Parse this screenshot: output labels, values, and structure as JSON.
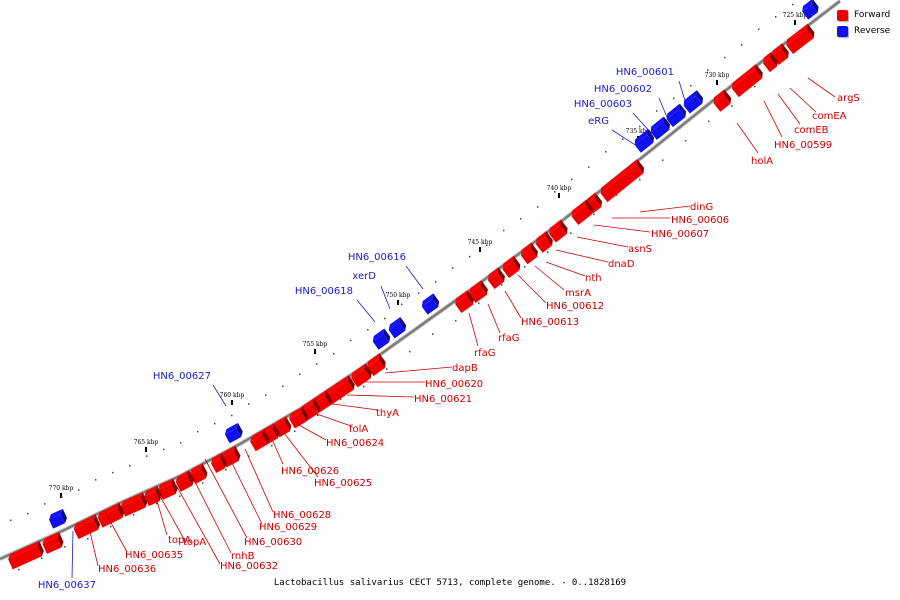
{
  "legend": {
    "forward_label": "Forward",
    "reverse_label": "Reverse",
    "forward_color": "#ee0000",
    "reverse_color": "#1010ee"
  },
  "colors": {
    "forward_label_text": "#cc0000",
    "reverse_label_text": "#1a1acc",
    "backbone": "#777777"
  },
  "caption": "Lactobacillus salivarius CECT 5713, complete genome. - 0..1828169",
  "ticks": [
    "725 kbp",
    "730 kbp",
    "735 kbp",
    "740 kbp",
    "745 kbp",
    "750 kbp",
    "755 kbp",
    "760 kbp",
    "765 kbp",
    "770 kbp"
  ],
  "forward_labels": [
    "argS",
    "comEA",
    "comEB",
    "HN6_00599",
    "holA",
    "dinG",
    "HN6_00606",
    "HN6_00607",
    "asnS",
    "dnaD",
    "nth",
    "msrA",
    "HN6_00612",
    "HN6_00613",
    "rfaG",
    "rfaG",
    "dapB",
    "HN6_00620",
    "HN6_00621",
    "thyA",
    "folA",
    "HN6_00624",
    "HN6_00625",
    "HN6_00626",
    "HN6_00628",
    "HN6_00629",
    "HN6_00630",
    "rnhB",
    "HN6_00632",
    "topA",
    "topA",
    "HN6_00635",
    "HN6_00636"
  ],
  "reverse_labels": [
    "HN6_00601",
    "HN6_00602",
    "HN6_00603",
    "eRG",
    "HN6_00616",
    "xerD",
    "HN6_00618",
    "HN6_00627",
    "HN6_00637"
  ]
}
